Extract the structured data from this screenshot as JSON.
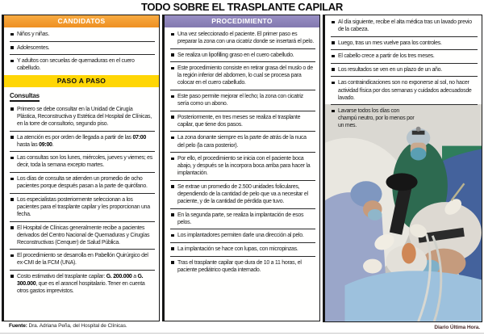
{
  "title": "TODO SOBRE EL TRASPLANTE CAPILAR",
  "colors": {
    "header_orange": "#F09A2D",
    "header_yellow": "#FFD605",
    "header_purple": "#8D84BA",
    "border_black": "#161616",
    "scrub_green": "#2D6A50",
    "scrub_navy": "#44629C",
    "drape_blue": "#9DC1DD"
  },
  "candidatos": {
    "header": "CANDIDATOS",
    "items": [
      "Niños y niñas.",
      "Adolescentes.",
      "Y adultos con secuelas de quemaduras en el cuero cabelludo."
    ]
  },
  "paso_a_paso": {
    "header": "PASO A PASO",
    "subheader": "Consultas",
    "items": [
      "Primero se debe consultar en la Unidad de Cirugía Plástica, Reconstructiva y Estética del Hospital de Clínicas, en la torre de consultorio, segundo piso.",
      "La atención es por orden de llegada a partir de las **07:00** hasta las **09:00**.",
      "Las consultas son los lunes, miércoles, jueves y viernes; es decir, toda la semana excepto martes.",
      "Los días de consulta se atienden un promedio de ocho pacientes porque después pasan a la parte de quirófano.",
      "Los especialistas posteriormente seleccionan a los pacientes para el trasplante capilar y les proporcionan una fecha.",
      "El Hospital de Clínicas generalmente recibe a pacientes derivados del Centro Nacional de Quemaduras y Cirugías Reconstructivas (Cenquer) de Salud Pública.",
      "El procedimiento se desarrolla en Pabellón Quirúrgico del ex-CMI de la FCM (UNA).",
      "Costo estimativo del trasplante capilar: **G. 200.000** a **G. 300.000**, que es el arancel hospitalario. Tener en cuenta otros gastos imprevistos."
    ]
  },
  "procedimiento": {
    "header": "PROCEDIMIENTO",
    "items": [
      "Una vez seleccionado el paciente. El primer paso es preparar la zona con una cicatriz donde se insertará el pelo.",
      "Se realiza un lipofilling graso en el cuero cabelludo.",
      "Este procedimiento consiste en retirar grasa del muslo o de la región inferior del abdomen, lo cual se procesa para colocar en el cuero cabelludo.",
      "Este paso permite mejorar el lecho; la zona con cicatriz sería como un abono.",
      "Posteriormente, en tres meses se realiza el trasplante capilar, que tiene dos pasos.",
      "La zona donante siempre es la parte de atrás de la nuca del pelo (la cara posterior).",
      "Por ello, el procedimiento se inicia con el paciente boca abajo, y después se la incorpora boca arriba para hacer la implantación.",
      "Se extrae un promedio de 2.500 unidades foliculares, dependiendo de la cantidad de pelo que va a necesitar el paciente, y de la cantidad de pérdida que tuvo.",
      "En la segunda parte, se realiza la implantación de esos pelos.",
      "Los implantadores permiten darle una dirección al pelo.",
      "La implantación se hace con lupas, con micropinzas.",
      "Tras el trasplante capilar que dura de 10 a 11 horas, el paciente pediátrico queda internado."
    ]
  },
  "postoperatorio": {
    "items": [
      "Al día siguiente, recibe el alta médica tras un lavado previo de la cabeza.",
      "Luego, tras un mes vuelve para los controles.",
      "El cabello crece a partir de los tres meses.",
      "Los resultados se ven en un plazo de un año.",
      "Las contraindicaciones son no exponerse al sol, no hacer actividad física por dos semanas y cuidados adecuadosde lavado.",
      "Lavarse todos los días con champú neutro, por lo menos por un mes."
    ]
  },
  "photo": {
    "credit": "Diario Última Hora."
  },
  "footer": {
    "source_label": "Fuente:",
    "source_text": " Dra. Adriana Peña, del Hospital de Clínicas."
  }
}
